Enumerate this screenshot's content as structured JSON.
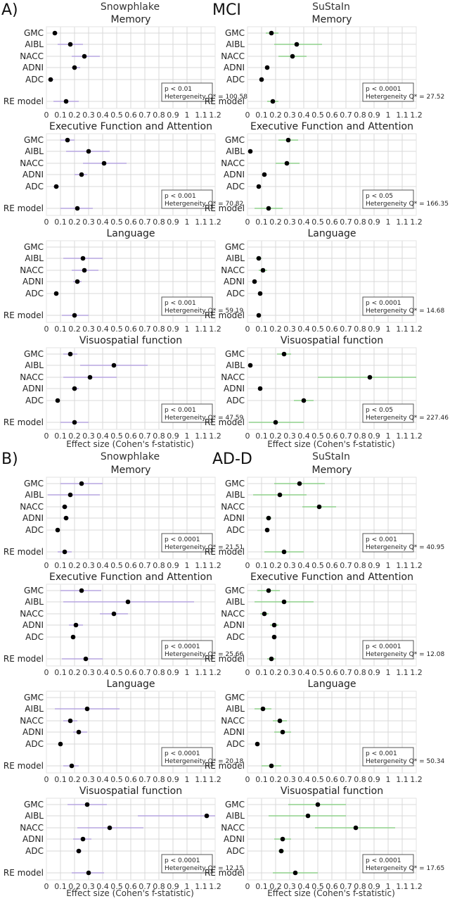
{
  "sections": [
    {
      "label": "A)",
      "group": "MCI"
    },
    {
      "label": "B)",
      "group": "AD-D"
    }
  ],
  "methods": [
    "Snowphlake",
    "SuStaIn"
  ],
  "xlabel": "Effect size (Cohen's f-statistic)",
  "ticks": [
    "0",
    "0.1",
    "0.2",
    "0.3",
    "0.4",
    "0.5",
    "0.6",
    "0.7",
    "0.8",
    "0.9",
    "1",
    "1.1",
    "1.2"
  ],
  "row_labels": [
    "GMC",
    "AIBL",
    "NACC",
    "ADNI",
    "ADC",
    "RE model"
  ],
  "colors": {
    "snowphlake": "#b7a6e0",
    "sustain": "#8fd18b",
    "point": "#000000",
    "grid": "#d9d9d9",
    "box": "#555555"
  },
  "chart_data": [
    {
      "type": "scatter",
      "group": "MCI",
      "method": "Snowphlake",
      "title": "Memory",
      "rows": [
        "GMC",
        "AIBL",
        "NACC",
        "ADNI",
        "ADC",
        "RE model"
      ],
      "est": [
        0.06,
        0.17,
        0.27,
        0.2,
        0.03,
        0.14
      ],
      "lo": [
        0.05,
        0.08,
        0.18,
        0.18,
        0.02,
        0.05
      ],
      "hi": [
        0.08,
        0.26,
        0.38,
        0.24,
        0.05,
        0.23
      ],
      "p": "p < 0.01",
      "q": "Hetergeneity Q* = 100.58",
      "xlim": [
        0,
        1.2
      ]
    },
    {
      "type": "scatter",
      "group": "MCI",
      "method": "Snowphlake",
      "title": "Executive Function and Attention",
      "rows": [
        "GMC",
        "AIBL",
        "NACC",
        "ADNI",
        "ADC",
        "RE model"
      ],
      "est": [
        0.15,
        0.3,
        0.41,
        0.25,
        0.07,
        0.22
      ],
      "lo": [
        0.1,
        0.14,
        0.26,
        0.2,
        0.05,
        0.1
      ],
      "hi": [
        0.2,
        0.45,
        0.57,
        0.29,
        0.09,
        0.33
      ],
      "p": "p < 0.001",
      "q": "Hetergeneity Q* = 70.82",
      "xlim": [
        0,
        1.2
      ]
    },
    {
      "type": "scatter",
      "group": "MCI",
      "method": "Snowphlake",
      "title": "Language",
      "rows": [
        "GMC",
        "AIBL",
        "NACC",
        "ADNI",
        "ADC",
        "RE model"
      ],
      "est": [
        null,
        0.26,
        0.27,
        0.22,
        0.07,
        0.2
      ],
      "lo": [
        null,
        0.12,
        0.18,
        0.19,
        0.06,
        0.11
      ],
      "hi": [
        null,
        0.4,
        0.37,
        0.25,
        0.08,
        0.3
      ],
      "p": "p < 0.001",
      "q": "Hetergeneity Q* = 59.19",
      "xlim": [
        0,
        1.2
      ]
    },
    {
      "type": "scatter",
      "group": "MCI",
      "method": "Snowphlake",
      "title": "Visuospatial function",
      "rows": [
        "GMC",
        "AIBL",
        "NACC",
        "ADNI",
        "ADC",
        "RE model"
      ],
      "est": [
        0.17,
        0.48,
        0.31,
        0.2,
        0.08,
        0.2
      ],
      "lo": [
        0.12,
        0.24,
        0.12,
        0.18,
        0.07,
        0.1
      ],
      "hi": [
        0.22,
        0.72,
        0.5,
        0.23,
        0.09,
        0.3
      ],
      "p": "p < 0.001",
      "q": "Hetergeneity Q* = 47.59",
      "xlim": [
        0,
        1.2
      ]
    },
    {
      "type": "scatter",
      "group": "MCI",
      "method": "SuStaIn",
      "title": "Memory",
      "rows": [
        "GMC",
        "AIBL",
        "NACC",
        "ADNI",
        "ADC",
        "RE model"
      ],
      "est": [
        0.17,
        0.35,
        0.32,
        0.14,
        0.1,
        0.18
      ],
      "lo": [
        0.13,
        0.19,
        0.22,
        0.13,
        0.09,
        0.14
      ],
      "hi": [
        0.22,
        0.53,
        0.42,
        0.15,
        0.11,
        0.22
      ],
      "p": "p < 0.0001",
      "q": "Hetergeneity Q* = 27.52",
      "xlim": [
        0,
        1.2
      ]
    },
    {
      "type": "scatter",
      "group": "MCI",
      "method": "SuStaIn",
      "title": "Executive Function and Attention",
      "rows": [
        "GMC",
        "AIBL",
        "NACC",
        "ADNI",
        "ADC",
        "RE model"
      ],
      "est": [
        0.29,
        0.02,
        0.28,
        0.12,
        0.08,
        0.15
      ],
      "lo": [
        0.22,
        0.01,
        0.2,
        0.11,
        0.07,
        0.05
      ],
      "hi": [
        0.36,
        0.03,
        0.37,
        0.13,
        0.09,
        0.25
      ],
      "p": "p < 0.05",
      "q": "Hetergeneity Q* = 166.35",
      "xlim": [
        0,
        1.2
      ]
    },
    {
      "type": "scatter",
      "group": "MCI",
      "method": "SuStaIn",
      "title": "Language",
      "rows": [
        "GMC",
        "AIBL",
        "NACC",
        "ADNI",
        "ADC",
        "RE model"
      ],
      "est": [
        null,
        0.08,
        0.11,
        0.05,
        0.09,
        0.08
      ],
      "lo": [
        null,
        0.06,
        0.08,
        0.04,
        0.08,
        0.07
      ],
      "hi": [
        null,
        0.1,
        0.14,
        0.06,
        0.1,
        0.09
      ],
      "p": "p < 0.0001",
      "q": "Hetergeneity Q* = 14.68",
      "xlim": [
        0,
        1.2
      ]
    },
    {
      "type": "scatter",
      "group": "MCI",
      "method": "SuStaIn",
      "title": "Visuospatial function",
      "rows": [
        "GMC",
        "AIBL",
        "NACC",
        "ADNI",
        "ADC",
        "RE model"
      ],
      "est": [
        0.26,
        0.02,
        0.87,
        0.09,
        0.4,
        0.2
      ],
      "lo": [
        0.21,
        0.01,
        0.5,
        0.08,
        0.33,
        0.01
      ],
      "hi": [
        0.31,
        0.03,
        1.2,
        0.1,
        0.47,
        0.4
      ],
      "p": "p < 0.05",
      "q": "Hetergeneity Q* = 227.46",
      "xlim": [
        0,
        1.2
      ]
    },
    {
      "type": "scatter",
      "group": "AD-D",
      "method": "Snowphlake",
      "title": "Memory",
      "rows": [
        "GMC",
        "AIBL",
        "NACC",
        "ADNI",
        "ADC",
        "RE model"
      ],
      "est": [
        0.25,
        0.17,
        0.13,
        0.14,
        0.08,
        0.13
      ],
      "lo": [
        0.1,
        0.01,
        0.11,
        0.12,
        0.07,
        0.08
      ],
      "hi": [
        0.4,
        0.38,
        0.15,
        0.16,
        0.09,
        0.18
      ],
      "p": "p < 0.0001",
      "q": "Hetergeneity Q* = 21.51",
      "xlim": [
        0,
        1.2
      ]
    },
    {
      "type": "scatter",
      "group": "AD-D",
      "method": "Snowphlake",
      "title": "Executive Function and Attention",
      "rows": [
        "GMC",
        "AIBL",
        "NACC",
        "ADNI",
        "ADC",
        "RE model"
      ],
      "est": [
        0.25,
        0.58,
        0.48,
        0.21,
        0.19,
        0.28
      ],
      "lo": [
        0.1,
        0.12,
        0.38,
        0.16,
        0.18,
        0.11
      ],
      "hi": [
        0.39,
        1.05,
        0.58,
        0.26,
        0.2,
        0.4
      ],
      "p": "p < 0.0001",
      "q": "Hetergeneity Q* = 25.66",
      "xlim": [
        0,
        1.2
      ]
    },
    {
      "type": "scatter",
      "group": "AD-D",
      "method": "Snowphlake",
      "title": "Language",
      "rows": [
        "GMC",
        "AIBL",
        "NACC",
        "ADNI",
        "ADC",
        "RE model"
      ],
      "est": [
        null,
        0.29,
        0.17,
        0.23,
        0.1,
        0.18
      ],
      "lo": [
        null,
        0.06,
        0.12,
        0.19,
        0.09,
        0.12
      ],
      "hi": [
        null,
        0.52,
        0.22,
        0.29,
        0.11,
        0.23
      ],
      "p": "p < 0.0001",
      "q": "Hetergeneity Q* = 20.18",
      "xlim": [
        0,
        1.2
      ]
    },
    {
      "type": "scatter",
      "group": "AD-D",
      "method": "Snowphlake",
      "title": "Visuospatial function",
      "rows": [
        "GMC",
        "AIBL",
        "NACC",
        "ADNI",
        "ADC",
        "RE model"
      ],
      "est": [
        0.29,
        1.14,
        0.45,
        0.26,
        0.23,
        0.3
      ],
      "lo": [
        0.15,
        0.65,
        0.22,
        0.19,
        0.21,
        0.18
      ],
      "hi": [
        0.43,
        1.2,
        0.69,
        0.32,
        0.25,
        0.41
      ],
      "p": "p < 0.0001",
      "q": "Hetergeneity Q* = 12.15",
      "xlim": [
        0,
        1.2
      ]
    },
    {
      "type": "scatter",
      "group": "AD-D",
      "method": "SuStaIn",
      "title": "Memory",
      "rows": [
        "GMC",
        "AIBL",
        "NACC",
        "ADNI",
        "ADC",
        "RE model"
      ],
      "est": [
        0.37,
        0.23,
        0.51,
        0.15,
        0.14,
        0.26
      ],
      "lo": [
        0.19,
        0.04,
        0.39,
        0.13,
        0.13,
        0.12
      ],
      "hi": [
        0.55,
        0.42,
        0.63,
        0.17,
        0.15,
        0.4
      ],
      "p": "p < 0.001",
      "q": "Hetergeneity Q* = 40.95",
      "xlim": [
        0,
        1.2
      ]
    },
    {
      "type": "scatter",
      "group": "AD-D",
      "method": "SuStaIn",
      "title": "Executive Function and Attention",
      "rows": [
        "GMC",
        "AIBL",
        "NACC",
        "ADNI",
        "ADC",
        "RE model"
      ],
      "est": [
        0.15,
        0.26,
        0.12,
        0.19,
        0.19,
        0.17
      ],
      "lo": [
        0.07,
        0.05,
        0.09,
        0.16,
        0.18,
        0.14
      ],
      "hi": [
        0.23,
        0.47,
        0.15,
        0.22,
        0.2,
        0.2
      ],
      "p": "p < 0.0001",
      "q": "Hetergeneity Q* = 12.08",
      "xlim": [
        0,
        1.2
      ]
    },
    {
      "type": "scatter",
      "group": "AD-D",
      "method": "SuStaIn",
      "title": "Language",
      "rows": [
        "GMC",
        "AIBL",
        "NACC",
        "ADNI",
        "ADC",
        "RE model"
      ],
      "est": [
        null,
        0.11,
        0.23,
        0.25,
        0.07,
        0.17
      ],
      "lo": [
        null,
        0.05,
        0.18,
        0.19,
        0.06,
        0.1
      ],
      "hi": [
        null,
        0.17,
        0.28,
        0.31,
        0.08,
        0.24
      ],
      "p": "p < 0.001",
      "q": "Hetergeneity Q* = 50.34",
      "xlim": [
        0,
        1.2
      ]
    },
    {
      "type": "scatter",
      "group": "AD-D",
      "method": "SuStaIn",
      "title": "Visuospatial function",
      "rows": [
        "GMC",
        "AIBL",
        "NACC",
        "ADNI",
        "ADC",
        "RE model"
      ],
      "est": [
        0.5,
        0.43,
        0.77,
        0.25,
        0.24,
        0.34
      ],
      "lo": [
        0.29,
        0.15,
        0.48,
        0.19,
        0.22,
        0.18
      ],
      "hi": [
        0.7,
        0.7,
        1.05,
        0.31,
        0.26,
        0.5
      ],
      "p": "p < 0.0001",
      "q": "Hetergeneity Q* = 17.65",
      "xlim": [
        0,
        1.2
      ]
    }
  ]
}
